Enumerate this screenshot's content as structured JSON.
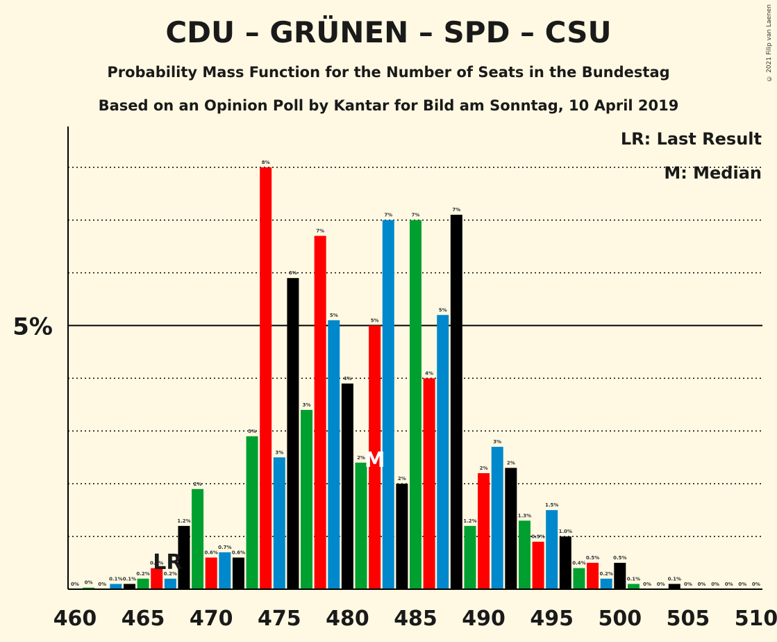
{
  "title": "CDU – GRÜNEN – SPD – CSU",
  "subtitle1": "Probability Mass Function for the Number of Seats in the Bundestag",
  "subtitle2": "Based on an Opinion Poll by Kantar for Bild am Sonntag, 10 April 2019",
  "copyright": "© 2021 Filip van Laenen",
  "legend": {
    "lr": "LR: Last Result",
    "median": "M: Median"
  },
  "colors": {
    "background": "#FFF9E3",
    "green": "#00A030",
    "red": "#FF0000",
    "blue": "#0088CC",
    "black": "#000000"
  },
  "chart_data": {
    "type": "bar",
    "x": [
      460,
      461,
      462,
      463,
      464,
      465,
      466,
      467,
      468,
      469,
      470,
      471,
      472,
      473,
      474,
      475,
      476,
      477,
      478,
      479,
      480,
      481,
      482,
      483,
      484,
      485,
      486,
      487,
      488,
      489,
      490,
      491,
      492,
      493,
      494,
      495,
      496,
      497,
      498,
      499,
      500,
      501,
      502,
      503,
      504,
      505,
      506,
      507,
      508,
      509,
      510
    ],
    "values": [
      0,
      0.03,
      0,
      0.1,
      0.1,
      0.2,
      0.4,
      0.2,
      1.2,
      1.9,
      0.6,
      0.7,
      0.6,
      2.9,
      8.0,
      2.5,
      5.9,
      3.4,
      6.7,
      5.1,
      3.9,
      2.4,
      5.0,
      7.0,
      2.0,
      7.0,
      4.0,
      5.2,
      7.1,
      1.2,
      2.2,
      2.7,
      2.3,
      1.3,
      0.9,
      1.5,
      1.0,
      0.4,
      0.5,
      0.2,
      0.5,
      0.1,
      0,
      0,
      0.1,
      0,
      0,
      0,
      0,
      0,
      0
    ],
    "labels": [
      "0%",
      "0%",
      "0%",
      "0.1%",
      "0.1%",
      "0.2%",
      "0.4%",
      "0.2%",
      "1.2%",
      "2%",
      "0.6%",
      "0.7%",
      "0.6%",
      "3%",
      "8%",
      "3%",
      "6%",
      "3%",
      "7%",
      "5%",
      "4%",
      "2%",
      "5%",
      "7%",
      "2%",
      "7%",
      "4%",
      "5%",
      "7%",
      "1.2%",
      "2%",
      "3%",
      "2%",
      "1.3%",
      "0.9%",
      "1.5%",
      "1.0%",
      "0.4%",
      "0.5%",
      "0.2%",
      "0.5%",
      "0.1%",
      "0%",
      "0%",
      "0.1%",
      "0%",
      "0%",
      "0%",
      "0%",
      "0%",
      "0%"
    ],
    "colors": [
      "black",
      "green",
      "red",
      "blue",
      "black",
      "green",
      "red",
      "blue",
      "black",
      "green",
      "red",
      "blue",
      "black",
      "green",
      "red",
      "blue",
      "black",
      "green",
      "red",
      "blue",
      "black",
      "green",
      "red",
      "blue",
      "black",
      "green",
      "red",
      "blue",
      "black",
      "green",
      "red",
      "blue",
      "black",
      "green",
      "red",
      "blue",
      "black",
      "green",
      "red",
      "blue",
      "black",
      "green",
      "red",
      "blue",
      "black",
      "green",
      "red",
      "blue",
      "black",
      "green",
      "red"
    ],
    "x_ticks": [
      460,
      465,
      470,
      475,
      480,
      485,
      490,
      495,
      500,
      505,
      510
    ],
    "y_tick_label": "5%",
    "y_tick_value": 5,
    "ylim": [
      0,
      8.6
    ],
    "gridlines": [
      1,
      2,
      3,
      4,
      6,
      7,
      8
    ],
    "last_result": {
      "x": 467,
      "label": "LR"
    },
    "median": {
      "x": 482,
      "label": "M"
    }
  }
}
